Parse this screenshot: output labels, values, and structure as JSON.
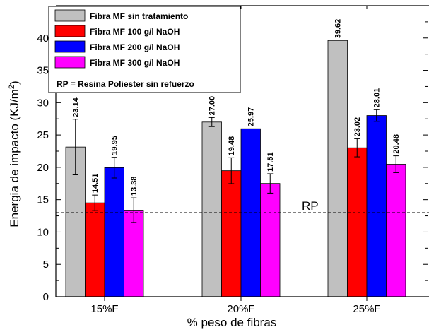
{
  "chart_data": {
    "type": "bar",
    "xlabel": "% peso de fibras",
    "ylabel_main": "Energia de impacto (KJ/m",
    "ylabel_sup": "2",
    "ylabel_close": ")",
    "ylim": [
      0,
      45
    ],
    "yticks": [
      0,
      5,
      10,
      15,
      20,
      25,
      30,
      35,
      40
    ],
    "categories": [
      "15%F",
      "20%F",
      "25%F"
    ],
    "series": [
      {
        "name": "Fibra MF sin tratamiento",
        "color": "#c0c0c0",
        "values": [
          23.14,
          27.0,
          39.62
        ],
        "errors": [
          4.3,
          0.7,
          0.0
        ],
        "labels": [
          "23.14",
          "27.00",
          "39.62"
        ]
      },
      {
        "name": "Fibra MF 100 g/l NaOH",
        "color": "#ff0000",
        "values": [
          14.51,
          19.48,
          23.02
        ],
        "errors": [
          1.2,
          2.0,
          1.4
        ],
        "labels": [
          "14.51",
          "19.48",
          "23.02"
        ]
      },
      {
        "name": "Fibra MF 200 g/l NaOH",
        "color": "#0000ff",
        "values": [
          19.95,
          25.97,
          28.01
        ],
        "errors": [
          1.6,
          0.0,
          0.9
        ],
        "labels": [
          "19.95",
          "25.97",
          "28.01"
        ]
      },
      {
        "name": "Fibra MF 300 g/l NaOH",
        "color": "#ff00ff",
        "values": [
          13.38,
          17.51,
          20.48
        ],
        "errors": [
          1.9,
          1.5,
          1.3
        ],
        "labels": [
          "13.38",
          "17.51",
          "20.48"
        ]
      }
    ],
    "reference_line": {
      "value": 13,
      "label": "RP",
      "style": "dashed"
    },
    "legend_note": "RP = Resina Poliester sin refuerzo",
    "legend_position": "top-left",
    "grid": false
  }
}
